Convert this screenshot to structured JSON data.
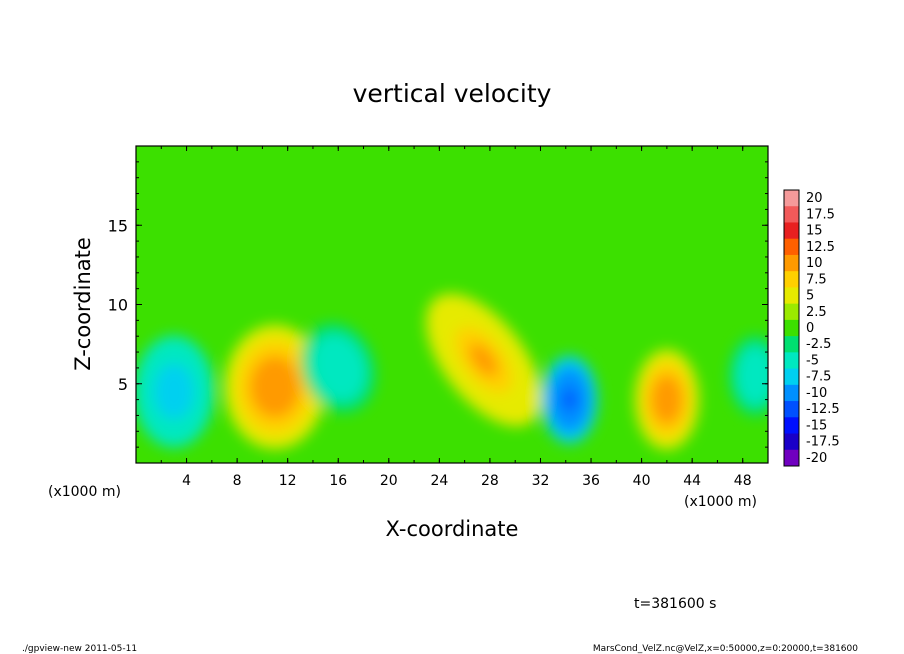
{
  "chart_data": {
    "type": "heatmap",
    "title": "vertical velocity",
    "xlabel": "X-coordinate",
    "ylabel": "Z-coordinate",
    "x_unit_note": "(x1000 m)",
    "y_unit_note": "(x1000 m)",
    "xlim": [
      0,
      50
    ],
    "ylim": [
      0,
      20
    ],
    "x_ticks": [
      "4",
      "8",
      "12",
      "16",
      "20",
      "24",
      "28",
      "32",
      "36",
      "40",
      "44",
      "48"
    ],
    "y_ticks": [
      "5",
      "10",
      "15"
    ],
    "colorbar": {
      "levels": [
        "20",
        "17.5",
        "15",
        "12.5",
        "10",
        "7.5",
        "5",
        "2.5",
        "0",
        "-2.5",
        "-5",
        "-7.5",
        "-10",
        "-12.5",
        "-15",
        "-17.5",
        "-20"
      ],
      "colors": [
        "#f59a9a",
        "#f25a5a",
        "#e82020",
        "#ff6000",
        "#ff9a00",
        "#ffd000",
        "#e6ea00",
        "#9bea00",
        "#3ce000",
        "#00e070",
        "#00e8c0",
        "#00d0f0",
        "#0090ff",
        "#0050ff",
        "#0010ff",
        "#1a00c8",
        "#7000c0"
      ]
    },
    "features": [
      {
        "x": 3,
        "z": 4.5,
        "value": -8
      },
      {
        "x": 11,
        "z": 4.8,
        "value": 11
      },
      {
        "x": 16,
        "z": 6,
        "value": -6
      },
      {
        "x": 27.5,
        "z": 6.5,
        "value": 9
      },
      {
        "x": 34.3,
        "z": 4,
        "value": -13
      },
      {
        "x": 42,
        "z": 4,
        "value": 11
      },
      {
        "x": 49,
        "z": 5.5,
        "value": -6
      }
    ],
    "time_label": "t=381600 s"
  },
  "footer": {
    "left": "./gpview-new  2011-05-11",
    "right": "MarsCond_VelZ.nc@VelZ,x=0:50000,z=0:20000,t=381600"
  }
}
